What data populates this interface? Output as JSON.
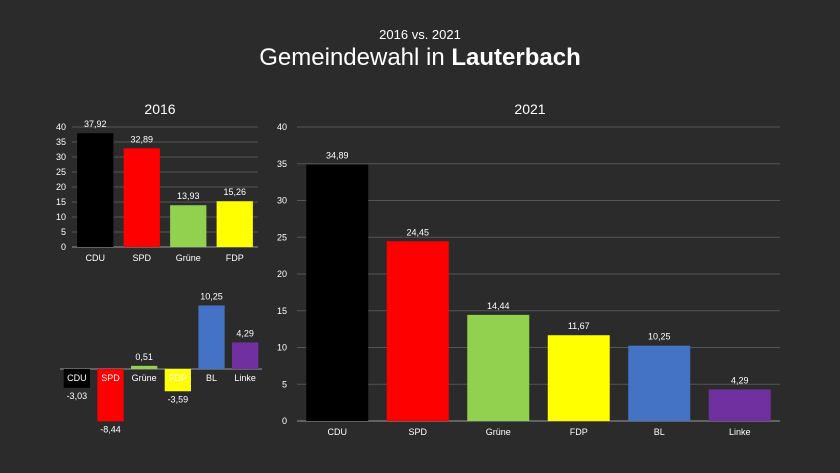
{
  "header": {
    "subtitle": "2016 vs. 2021",
    "title_prefix": "Gemeindewahl in",
    "title_place": "Lauterbach"
  },
  "colors": {
    "CDU": "#000000",
    "SPD": "#ff0000",
    "Grüne": "#92d050",
    "FDP": "#ffff00",
    "BL": "#4472c4",
    "Linke": "#7030a0"
  },
  "chart_data": [
    {
      "id": "c2016",
      "type": "bar",
      "title": "2016",
      "categories": [
        "CDU",
        "SPD",
        "Grüne",
        "FDP"
      ],
      "values": [
        37.92,
        32.89,
        13.93,
        15.26
      ],
      "labels": [
        "37,92",
        "32,89",
        "13,93",
        "15,26"
      ],
      "ylim": [
        0,
        40
      ],
      "yticks": [
        "0",
        "5",
        "10",
        "15",
        "20",
        "25",
        "30",
        "35",
        "40"
      ],
      "grid": true
    },
    {
      "id": "cdiff",
      "type": "bar",
      "title": "",
      "categories": [
        "CDU",
        "SPD",
        "Grüne",
        "FDP",
        "BL",
        "Linke"
      ],
      "values": [
        -3.03,
        -8.44,
        0.51,
        -3.59,
        10.25,
        4.29
      ],
      "labels": [
        "-3,03",
        "-8,44",
        "0,51",
        "-3,59",
        "10,25",
        "4,29"
      ],
      "grid": false
    },
    {
      "id": "c2021",
      "type": "bar",
      "title": "2021",
      "categories": [
        "CDU",
        "SPD",
        "Grüne",
        "FDP",
        "BL",
        "Linke"
      ],
      "values": [
        34.89,
        24.45,
        14.44,
        11.67,
        10.25,
        4.29
      ],
      "labels": [
        "34,89",
        "24,45",
        "14,44",
        "11,67",
        "10,25",
        "4,29"
      ],
      "ylim": [
        0,
        40
      ],
      "yticks": [
        "0",
        "5",
        "10",
        "15",
        "20",
        "25",
        "30",
        "35",
        "40"
      ],
      "grid": true
    }
  ]
}
